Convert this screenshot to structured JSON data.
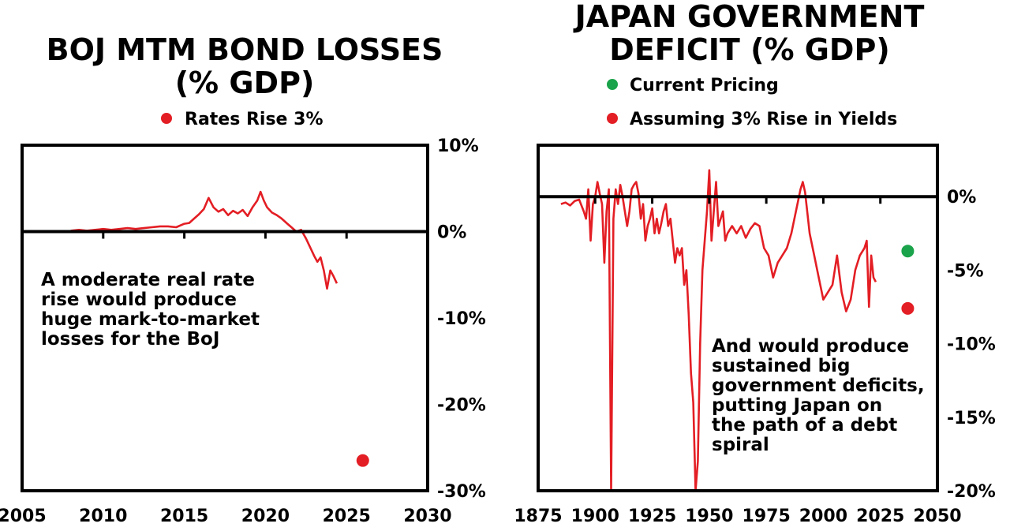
{
  "chart_data": [
    {
      "type": "line",
      "title_lines": [
        "BOJ MTM BOND LOSSES",
        "(% GDP)"
      ],
      "legend": [
        {
          "label": "Rates Rise 3%",
          "color": "#e31e24"
        }
      ],
      "annotation_lines": [
        "A moderate real rate",
        "rise would produce",
        "huge mark-to-market",
        "losses for the BoJ"
      ],
      "xlim": [
        2005,
        2030
      ],
      "ylim": [
        -30,
        10
      ],
      "x_ticks": [
        2005,
        2010,
        2015,
        2020,
        2025,
        2030
      ],
      "x_tick_labels": [
        "2005",
        "2010",
        "2015",
        "2020",
        "2025",
        "2030"
      ],
      "y_ticks": [
        10,
        0,
        -10,
        -20,
        -30
      ],
      "y_tick_labels": [
        "10%",
        "0%",
        "-10%",
        "-20%",
        "-30%"
      ],
      "line_color": "#e31e24",
      "series": [
        {
          "x": [
            2008.0,
            2008.5,
            2009.0,
            2009.5,
            2010.0,
            2010.5,
            2011.0,
            2011.5,
            2012.0,
            2012.5,
            2013.0,
            2013.5,
            2014.0,
            2014.5,
            2015.0,
            2015.3,
            2015.6,
            2015.9,
            2016.2,
            2016.5,
            2016.8,
            2017.1,
            2017.4,
            2017.7,
            2018.0,
            2018.3,
            2018.6,
            2018.9,
            2019.2,
            2019.5,
            2019.7,
            2019.9,
            2020.1,
            2020.4,
            2020.7,
            2021.0,
            2021.3,
            2021.6,
            2021.9,
            2022.2,
            2022.5,
            2022.8,
            2023.0,
            2023.2,
            2023.4,
            2023.6,
            2023.8,
            2024.0,
            2024.2,
            2024.4
          ],
          "y": [
            0.1,
            0.2,
            0.1,
            0.2,
            0.3,
            0.2,
            0.3,
            0.4,
            0.3,
            0.4,
            0.5,
            0.6,
            0.6,
            0.5,
            0.9,
            1.0,
            1.5,
            2.0,
            2.6,
            3.9,
            2.8,
            2.3,
            2.6,
            1.9,
            2.4,
            2.1,
            2.5,
            1.8,
            2.8,
            3.6,
            4.6,
            3.6,
            2.8,
            2.2,
            1.9,
            1.5,
            1.0,
            0.5,
            0.0,
            0.2,
            -0.8,
            -2.0,
            -2.8,
            -3.5,
            -3.0,
            -4.5,
            -6.6,
            -4.5,
            -5.2,
            -6.0
          ]
        }
      ],
      "points": [
        {
          "x": 2026,
          "y": -26.5,
          "color": "#e31e24"
        }
      ]
    },
    {
      "type": "line",
      "title_lines": [
        "JAPAN GOVERNMENT",
        "DEFICIT (% GDP)"
      ],
      "legend": [
        {
          "label": "Current Pricing",
          "color": "#1aa34a"
        },
        {
          "label": "Assuming 3% Rise in Yields",
          "color": "#e31e24"
        }
      ],
      "annotation_lines": [
        "And would produce",
        "sustained big",
        "government deficits,",
        "putting Japan on",
        "the path of a debt",
        "spiral"
      ],
      "xlim": [
        1875,
        2050
      ],
      "ylim": [
        -20,
        3.5
      ],
      "x_ticks": [
        1875,
        1900,
        1925,
        1950,
        1975,
        2000,
        2025,
        2050
      ],
      "x_tick_labels": [
        "1875",
        "1900",
        "1925",
        "1950",
        "1975",
        "2000",
        "2025",
        "2050"
      ],
      "y_ticks": [
        0,
        -5,
        -10,
        -15,
        -20
      ],
      "y_tick_labels": [
        "0%",
        "-5%",
        "-10%",
        "-15%",
        "-20%"
      ],
      "line_color": "#e31e24",
      "series": [
        {
          "x": [
            1885,
            1887,
            1889,
            1891,
            1893,
            1895,
            1896,
            1897,
            1898,
            1899,
            1900,
            1901,
            1902,
            1903,
            1904,
            1905,
            1906,
            1907,
            1908,
            1909,
            1910,
            1911,
            1912,
            1913,
            1914,
            1915,
            1916,
            1917,
            1918,
            1919,
            1920,
            1921,
            1922,
            1923,
            1924,
            1925,
            1926,
            1927,
            1928,
            1929,
            1930,
            1931,
            1932,
            1933,
            1934,
            1935,
            1936,
            1937,
            1938,
            1939,
            1940,
            1941,
            1942,
            1943,
            1944,
            1945,
            1946,
            1947,
            1948,
            1949,
            1950,
            1951,
            1952,
            1953,
            1954,
            1955,
            1956,
            1957,
            1958,
            1960,
            1962,
            1964,
            1966,
            1968,
            1970,
            1972,
            1974,
            1976,
            1978,
            1980,
            1982,
            1984,
            1986,
            1988,
            1990,
            1991,
            1992,
            1994,
            1996,
            1998,
            2000,
            2002,
            2004,
            2006,
            2008,
            2010,
            2012,
            2014,
            2016,
            2018,
            2019,
            2020,
            2021,
            2022,
            2023
          ],
          "y": [
            -0.5,
            -0.4,
            -0.6,
            -0.3,
            -0.2,
            -1.0,
            -1.5,
            0.5,
            -3.0,
            -0.5,
            0.0,
            1.0,
            0.2,
            -0.5,
            -4.5,
            -1.0,
            0.5,
            -20.0,
            -1.5,
            0.5,
            -0.5,
            0.8,
            0.0,
            -1.0,
            -2.0,
            -1.0,
            0.5,
            0.8,
            1.0,
            0.2,
            -1.5,
            -0.5,
            -3.0,
            -2.0,
            -1.5,
            -0.8,
            -2.5,
            -1.5,
            -2.5,
            -1.8,
            -1.0,
            -0.5,
            -2.0,
            -1.5,
            -3.0,
            -4.5,
            -3.5,
            -4.0,
            -3.5,
            -6.0,
            -5.0,
            -8.0,
            -12.0,
            -14.0,
            -20.0,
            -18.0,
            -10.0,
            -5.0,
            -3.0,
            -1.0,
            1.8,
            -3.0,
            -1.0,
            1.0,
            -2.0,
            -1.5,
            -1.0,
            -3.0,
            -2.5,
            -2.0,
            -2.5,
            -2.0,
            -2.8,
            -2.2,
            -1.8,
            -2.0,
            -3.5,
            -4.0,
            -5.5,
            -4.5,
            -4.0,
            -3.5,
            -2.5,
            -1.0,
            0.5,
            1.0,
            0.3,
            -2.5,
            -4.0,
            -5.5,
            -7.0,
            -6.5,
            -6.0,
            -4.0,
            -6.5,
            -7.8,
            -7.0,
            -5.0,
            -4.0,
            -3.5,
            -3.0,
            -7.5,
            -4.0,
            -5.5,
            -5.8
          ]
        }
      ],
      "points": [
        {
          "x": 2037,
          "y": -3.7,
          "color": "#1aa34a"
        },
        {
          "x": 2037,
          "y": -7.6,
          "color": "#e31e24"
        }
      ]
    }
  ]
}
